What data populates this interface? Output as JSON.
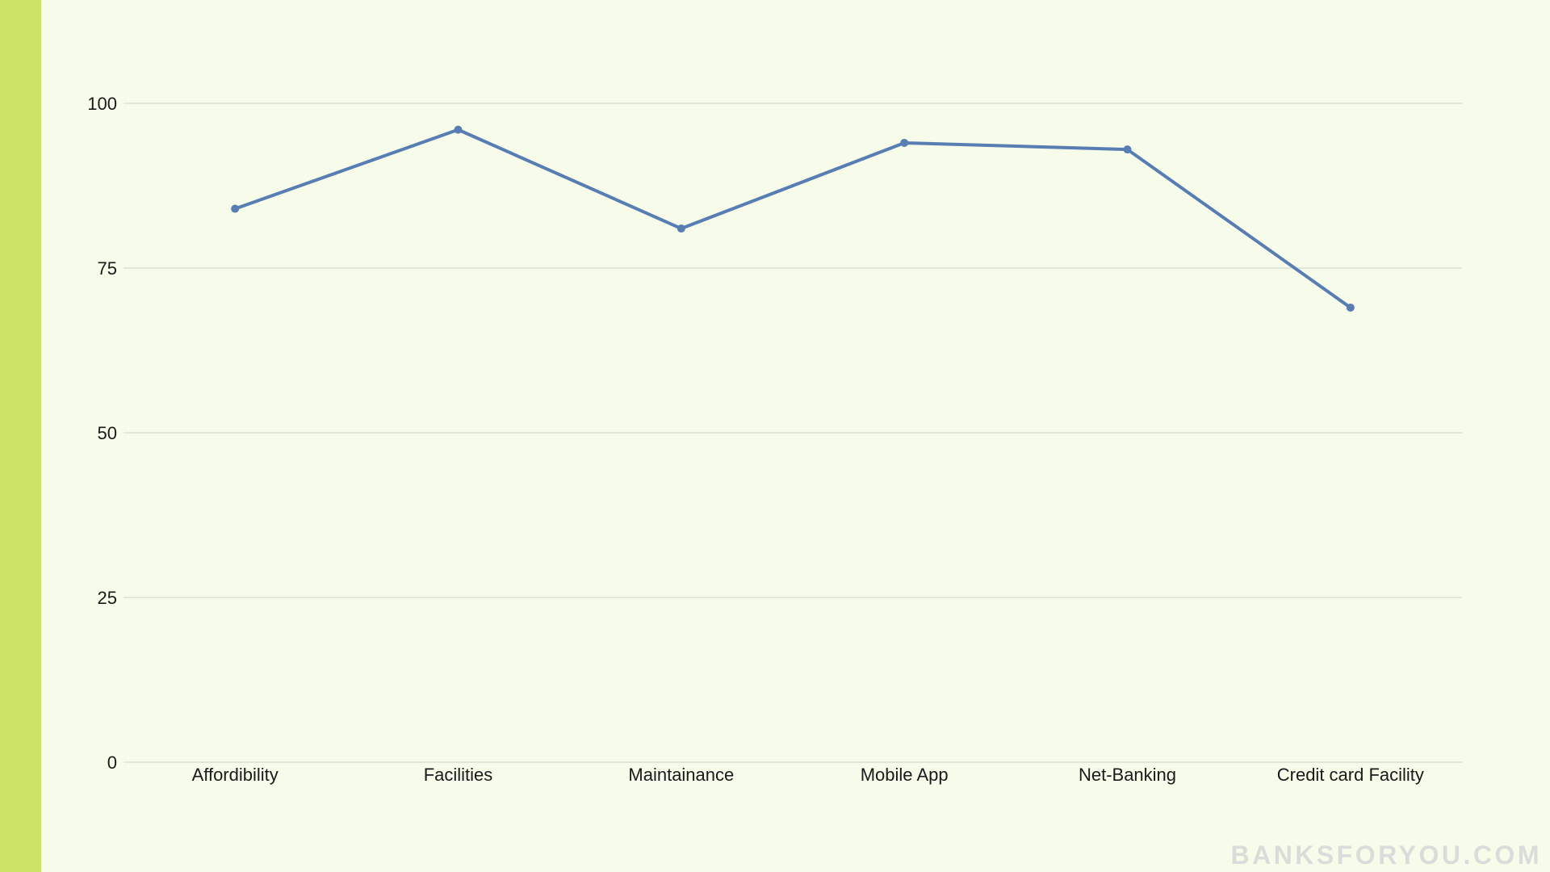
{
  "branding": {
    "watermark": "BANKSFORYOU.COM",
    "strip_color": "#cbe468",
    "background_color": "#f6fbea"
  },
  "chart_data": {
    "type": "line",
    "title": "",
    "xlabel": "",
    "ylabel": "",
    "categories": [
      "Affordibility",
      "Facilities",
      "Maintainance",
      "Mobile App",
      "Net-Banking",
      "Credit card Facility"
    ],
    "series": [
      {
        "values": [
          84,
          96,
          81,
          94,
          93,
          69
        ],
        "color": "#577db2"
      }
    ],
    "ylim": [
      0,
      100
    ],
    "yticks": [
      0,
      25,
      50,
      75,
      100
    ],
    "grid": true,
    "legend": "none"
  }
}
